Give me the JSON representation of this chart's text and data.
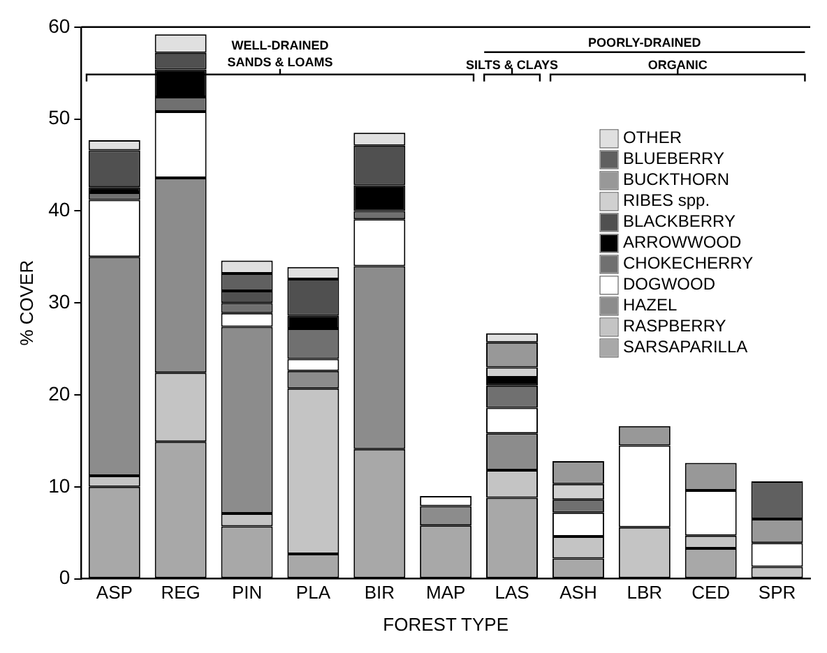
{
  "chart_data": {
    "type": "bar",
    "stacked": true,
    "xlabel": "FOREST TYPE",
    "ylabel": "% COVER",
    "categories": [
      "ASP",
      "REG",
      "PIN",
      "PLA",
      "BIR",
      "MAP",
      "LAS",
      "ASH",
      "LBR",
      "CED",
      "SPR"
    ],
    "ylim": [
      0,
      60
    ],
    "yticks": [
      0,
      10,
      20,
      30,
      40,
      50,
      60
    ],
    "grid": false,
    "legend": "right",
    "annotations": [
      "WELL-DRAINED SANDS & LOAMS",
      "POORLY-DRAINED",
      "SILTS & CLAYS",
      "ORGANIC"
    ],
    "series": [
      {
        "name": "SARSAPARILLA",
        "color": "#a8a8a8",
        "values": [
          10,
          14.9,
          5.7,
          2.7,
          14.1,
          5.8,
          8.8,
          2.2,
          0,
          3.3,
          0
        ]
      },
      {
        "name": "RASPBERRY",
        "color": "#c4c4c4",
        "values": [
          1.2,
          7.5,
          1.4,
          18,
          0,
          0,
          3,
          2.4,
          5.6,
          1.4,
          1.3
        ]
      },
      {
        "name": "HAZEL",
        "color": "#8c8c8c",
        "values": [
          23.8,
          21.2,
          20.3,
          1.9,
          19.9,
          2.1,
          4,
          0,
          0,
          0,
          0
        ]
      },
      {
        "name": "DOGWOOD",
        "color": "#ffffff",
        "values": [
          6.2,
          7.2,
          1.5,
          1.3,
          5.1,
          1.1,
          2.8,
          2.6,
          8.9,
          4.9,
          2.6
        ]
      },
      {
        "name": "CHOKECHERRY",
        "color": "#707070",
        "values": [
          0.8,
          1.6,
          1.1,
          3.3,
          0.9,
          0,
          2.4,
          1.4,
          0,
          0,
          0
        ]
      },
      {
        "name": "ARROWWOOD",
        "color": "#000000",
        "values": [
          0.6,
          3,
          0,
          1.4,
          2.8,
          0,
          0.9,
          0,
          0,
          0,
          0
        ]
      },
      {
        "name": "BLACKBERRY",
        "color": "#505050",
        "values": [
          4,
          1.8,
          1.3,
          4,
          4.3,
          0,
          0,
          0,
          0,
          0,
          0
        ]
      },
      {
        "name": "RIBES spp.",
        "color": "#d0d0d0",
        "values": [
          0,
          0,
          0,
          0,
          0,
          0,
          1.1,
          1.7,
          0,
          0,
          0
        ]
      },
      {
        "name": "BUCKTHORN",
        "color": "#989898",
        "values": [
          0,
          0,
          0,
          0,
          0,
          0,
          2.7,
          2.5,
          2.1,
          3,
          2.6
        ]
      },
      {
        "name": "BLUEBERRY",
        "color": "#606060",
        "values": [
          0,
          0,
          1.9,
          0,
          0,
          0,
          0,
          0,
          0,
          0,
          4.1
        ]
      },
      {
        "name": "OTHER",
        "color": "#e0e0e0",
        "values": [
          1.1,
          2,
          1.4,
          1.3,
          1.4,
          0,
          1,
          0,
          0,
          0,
          0
        ]
      }
    ]
  }
}
